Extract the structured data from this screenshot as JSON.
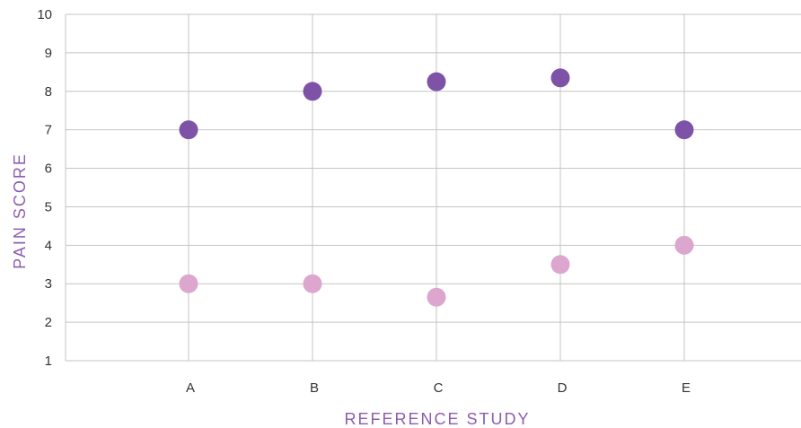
{
  "chart_data": {
    "type": "scatter",
    "title": "",
    "xlabel": "REFERENCE STUDY",
    "ylabel": "PAIN SCORE",
    "categories": [
      "A",
      "B",
      "C",
      "D",
      "E"
    ],
    "ylim": [
      1,
      10
    ],
    "yticks": [
      1,
      2,
      3,
      4,
      5,
      6,
      7,
      8,
      9,
      10
    ],
    "grid": true,
    "series": [
      {
        "color": "#7e52a6",
        "values": [
          7,
          8,
          8.25,
          8.35,
          7
        ]
      },
      {
        "color": "#dca6cf",
        "values": [
          3,
          3,
          2.65,
          3.5,
          4
        ]
      }
    ],
    "label_color": "#8c5cb0"
  }
}
